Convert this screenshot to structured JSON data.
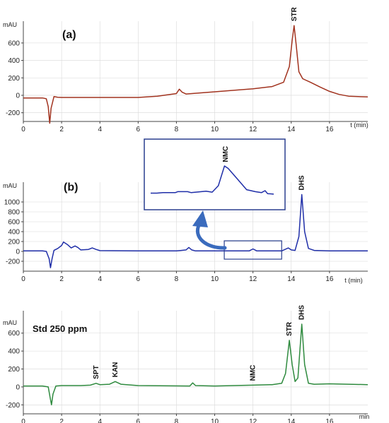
{
  "chart_data": [
    {
      "type": "line",
      "panel_label": "(a)",
      "ylabel": "mAU",
      "xlabel": "t (min)",
      "xlim": [
        0,
        18
      ],
      "ylim": [
        -300,
        850
      ],
      "xticks": [
        0,
        2,
        4,
        6,
        8,
        10,
        12,
        14,
        16
      ],
      "yticks": [
        -200,
        0,
        200,
        400,
        600
      ],
      "color": "#a1321e",
      "grid": true,
      "series": [
        {
          "points": [
            [
              0.0,
              -30
            ],
            [
              1.0,
              -30
            ],
            [
              1.2,
              -40
            ],
            [
              1.3,
              -130
            ],
            [
              1.38,
              -320
            ],
            [
              1.45,
              -150
            ],
            [
              1.6,
              -15
            ],
            [
              1.8,
              -22
            ],
            [
              2.0,
              -25
            ],
            [
              4.0,
              -25
            ],
            [
              6.0,
              -25
            ],
            [
              7.0,
              -10
            ],
            [
              8.0,
              20
            ],
            [
              8.15,
              70
            ],
            [
              8.3,
              35
            ],
            [
              8.5,
              15
            ],
            [
              10.0,
              40
            ],
            [
              12.0,
              75
            ],
            [
              13.0,
              100
            ],
            [
              13.6,
              150
            ],
            [
              13.9,
              330
            ],
            [
              14.05,
              630
            ],
            [
              14.15,
              800
            ],
            [
              14.25,
              600
            ],
            [
              14.4,
              270
            ],
            [
              14.6,
              190
            ],
            [
              15.0,
              150
            ],
            [
              15.5,
              95
            ],
            [
              16.0,
              45
            ],
            [
              16.5,
              10
            ],
            [
              17.0,
              -10
            ],
            [
              17.5,
              -15
            ],
            [
              18.0,
              -18
            ]
          ]
        }
      ],
      "peaks": [
        {
          "label": "STR",
          "x": 14.15,
          "y": 800
        }
      ]
    },
    {
      "type": "line",
      "panel_label": "(b)",
      "ylabel": "mAU",
      "xlabel": "t (min)",
      "xlim": [
        0,
        18
      ],
      "ylim": [
        -400,
        1400
      ],
      "xticks": [
        0,
        2,
        4,
        6,
        8,
        10,
        12,
        14,
        16
      ],
      "yticks": [
        -200,
        0,
        200,
        400,
        600,
        800,
        1000
      ],
      "color": "#1f2ea8",
      "grid": true,
      "series": [
        {
          "points": [
            [
              0.0,
              10
            ],
            [
              1.0,
              10
            ],
            [
              1.2,
              0
            ],
            [
              1.35,
              -150
            ],
            [
              1.42,
              -330
            ],
            [
              1.5,
              -150
            ],
            [
              1.6,
              20
            ],
            [
              1.8,
              60
            ],
            [
              2.0,
              120
            ],
            [
              2.1,
              190
            ],
            [
              2.3,
              140
            ],
            [
              2.5,
              70
            ],
            [
              2.7,
              110
            ],
            [
              2.85,
              80
            ],
            [
              3.0,
              30
            ],
            [
              3.4,
              40
            ],
            [
              3.6,
              70
            ],
            [
              3.8,
              40
            ],
            [
              4.0,
              15
            ],
            [
              6.0,
              10
            ],
            [
              8.0,
              10
            ],
            [
              8.5,
              30
            ],
            [
              8.65,
              80
            ],
            [
              8.8,
              30
            ],
            [
              9.0,
              10
            ],
            [
              11.8,
              10
            ],
            [
              12.0,
              50
            ],
            [
              12.2,
              10
            ],
            [
              13.5,
              10
            ],
            [
              13.85,
              70
            ],
            [
              14.0,
              30
            ],
            [
              14.2,
              20
            ],
            [
              14.4,
              300
            ],
            [
              14.55,
              1150
            ],
            [
              14.7,
              400
            ],
            [
              14.9,
              60
            ],
            [
              15.2,
              20
            ],
            [
              16.0,
              12
            ],
            [
              18.0,
              10
            ]
          ]
        }
      ],
      "peaks": [
        {
          "label": "DHS",
          "x": 14.55,
          "y": 1150
        }
      ],
      "inset": {
        "peak_label": "NMC",
        "series": [
          [
            0.0,
            0.05
          ],
          [
            0.05,
            0.05
          ],
          [
            0.1,
            0.06
          ],
          [
            0.2,
            0.06
          ],
          [
            0.22,
            0.08
          ],
          [
            0.3,
            0.08
          ],
          [
            0.33,
            0.06
          ],
          [
            0.45,
            0.09
          ],
          [
            0.5,
            0.07
          ],
          [
            0.55,
            0.2
          ],
          [
            0.6,
            0.6
          ],
          [
            0.63,
            0.55
          ],
          [
            0.7,
            0.35
          ],
          [
            0.78,
            0.12
          ],
          [
            0.85,
            0.08
          ],
          [
            0.9,
            0.06
          ],
          [
            0.93,
            0.1
          ],
          [
            0.95,
            0.04
          ],
          [
            1.0,
            0.03
          ]
        ]
      }
    },
    {
      "type": "line",
      "panel_label": "Std 250 ppm",
      "ylabel": "mAU",
      "xlabel": "min",
      "xlim": [
        0,
        18
      ],
      "ylim": [
        -300,
        850
      ],
      "xticks": [
        0,
        2,
        4,
        6,
        8,
        10,
        12,
        14,
        16
      ],
      "yticks": [
        -200,
        0,
        200,
        400,
        600
      ],
      "color": "#2e8a3e",
      "grid": true,
      "series": [
        {
          "points": [
            [
              0.0,
              10
            ],
            [
              1.0,
              10
            ],
            [
              1.3,
              0
            ],
            [
              1.4,
              -120
            ],
            [
              1.47,
              -200
            ],
            [
              1.55,
              -80
            ],
            [
              1.7,
              10
            ],
            [
              2.0,
              15
            ],
            [
              3.0,
              15
            ],
            [
              3.5,
              20
            ],
            [
              3.8,
              40
            ],
            [
              4.0,
              25
            ],
            [
              4.5,
              30
            ],
            [
              4.8,
              60
            ],
            [
              5.1,
              30
            ],
            [
              6.0,
              15
            ],
            [
              8.7,
              10
            ],
            [
              8.85,
              45
            ],
            [
              9.0,
              15
            ],
            [
              10.0,
              10
            ],
            [
              11.0,
              15
            ],
            [
              12.0,
              20
            ],
            [
              13.0,
              25
            ],
            [
              13.5,
              40
            ],
            [
              13.7,
              150
            ],
            [
              13.9,
              520
            ],
            [
              14.05,
              250
            ],
            [
              14.2,
              60
            ],
            [
              14.35,
              100
            ],
            [
              14.55,
              700
            ],
            [
              14.7,
              250
            ],
            [
              14.9,
              40
            ],
            [
              15.2,
              30
            ],
            [
              16.0,
              35
            ],
            [
              17.0,
              30
            ],
            [
              18.0,
              25
            ]
          ]
        }
      ],
      "peaks": [
        {
          "label": "SPT",
          "x": 3.8,
          "y": 40
        },
        {
          "label": "KAN",
          "x": 4.8,
          "y": 60
        },
        {
          "label": "NMC",
          "x": 12.0,
          "y": 20
        },
        {
          "label": "STR",
          "x": 13.9,
          "y": 520
        },
        {
          "label": "DHS",
          "x": 14.55,
          "y": 700
        }
      ]
    }
  ]
}
